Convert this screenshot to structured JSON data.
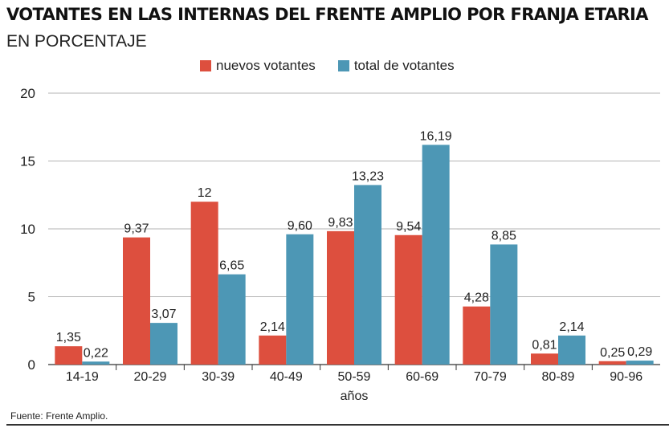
{
  "header": {
    "title": "VOTANTES EN LAS INTERNAS DEL FRENTE AMPLIO POR FRANJA ETARIA",
    "subtitle": "EN PORCENTAJE"
  },
  "source": "Fuente: Frente Amplio.",
  "chart_data": {
    "type": "bar",
    "title": "VOTANTES EN LAS INTERNAS DEL FRENTE AMPLIO POR FRANJA ETARIA",
    "subtitle": "EN PORCENTAJE",
    "xlabel": "años",
    "ylabel": "",
    "ylim": [
      0,
      20
    ],
    "yticks": [
      0,
      5,
      10,
      15,
      20
    ],
    "grid": true,
    "legend_position": "top",
    "categories": [
      "14-19",
      "20-29",
      "30-39",
      "40-49",
      "50-59",
      "60-69",
      "70-79",
      "80-89",
      "90-96"
    ],
    "series": [
      {
        "name": "nuevos votantes",
        "color": "#dd4f3e",
        "values": [
          1.35,
          9.37,
          12,
          2.14,
          9.83,
          9.54,
          4.28,
          0.81,
          0.25
        ],
        "labels": [
          "1,35",
          "9,37",
          "12",
          "2,14",
          "9,83",
          "9,54",
          "4,28",
          "0,81",
          "0,25"
        ]
      },
      {
        "name": "total de votantes",
        "color": "#4d97b5",
        "values": [
          0.22,
          3.07,
          6.65,
          9.6,
          13.23,
          16.19,
          8.85,
          2.14,
          0.29
        ],
        "labels": [
          "0,22",
          "3,07",
          "6,65",
          "9,60",
          "13,23",
          "16,19",
          "8,85",
          "2,14",
          "0,29"
        ]
      }
    ]
  }
}
